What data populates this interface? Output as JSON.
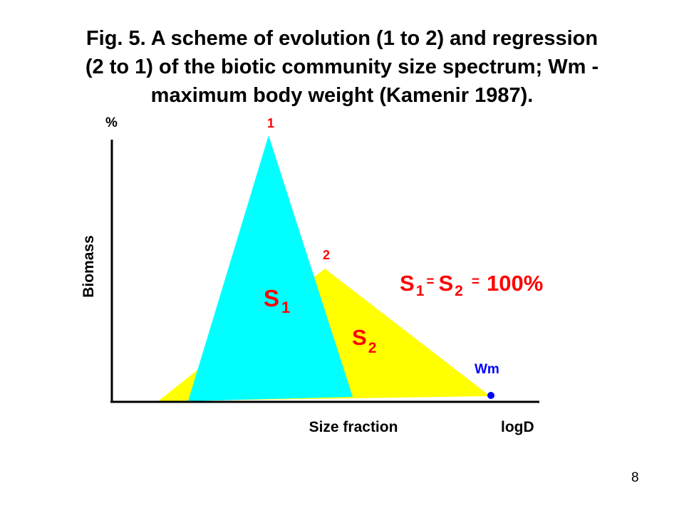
{
  "slide": {
    "title_lines": [
      "Fig. 5. A scheme of evolution (1 to 2) and regression",
      "(2 to 1) of the biotic community size spectrum; Wm -",
      "maximum body weight (Kamenir 1987)."
    ],
    "page_number": "8"
  },
  "diagram": {
    "y_axis_unit": "%",
    "y_axis_label": "Biomass",
    "x_axis_label": "Size fraction",
    "x_axis_unit": "logD",
    "peak_1_label": "1",
    "peak_2_label": "2",
    "area_1": {
      "letter": "S",
      "subscript": "1"
    },
    "area_2": {
      "letter": "S",
      "subscript": "2"
    },
    "wm_label": "Wm",
    "equation": {
      "s1_letter": "S",
      "s1_subscript": "1",
      "equals_1": "=",
      "s2_letter": "S",
      "s2_subscript": "2",
      "equals_2": "=",
      "value": "100%"
    },
    "colors": {
      "spectrum_1_fill": "#00FFFF",
      "spectrum_2_fill": "#FFFF00",
      "label_red": "#FF0000",
      "wm_blue": "#0000FF",
      "axis_black": "#000000"
    }
  }
}
